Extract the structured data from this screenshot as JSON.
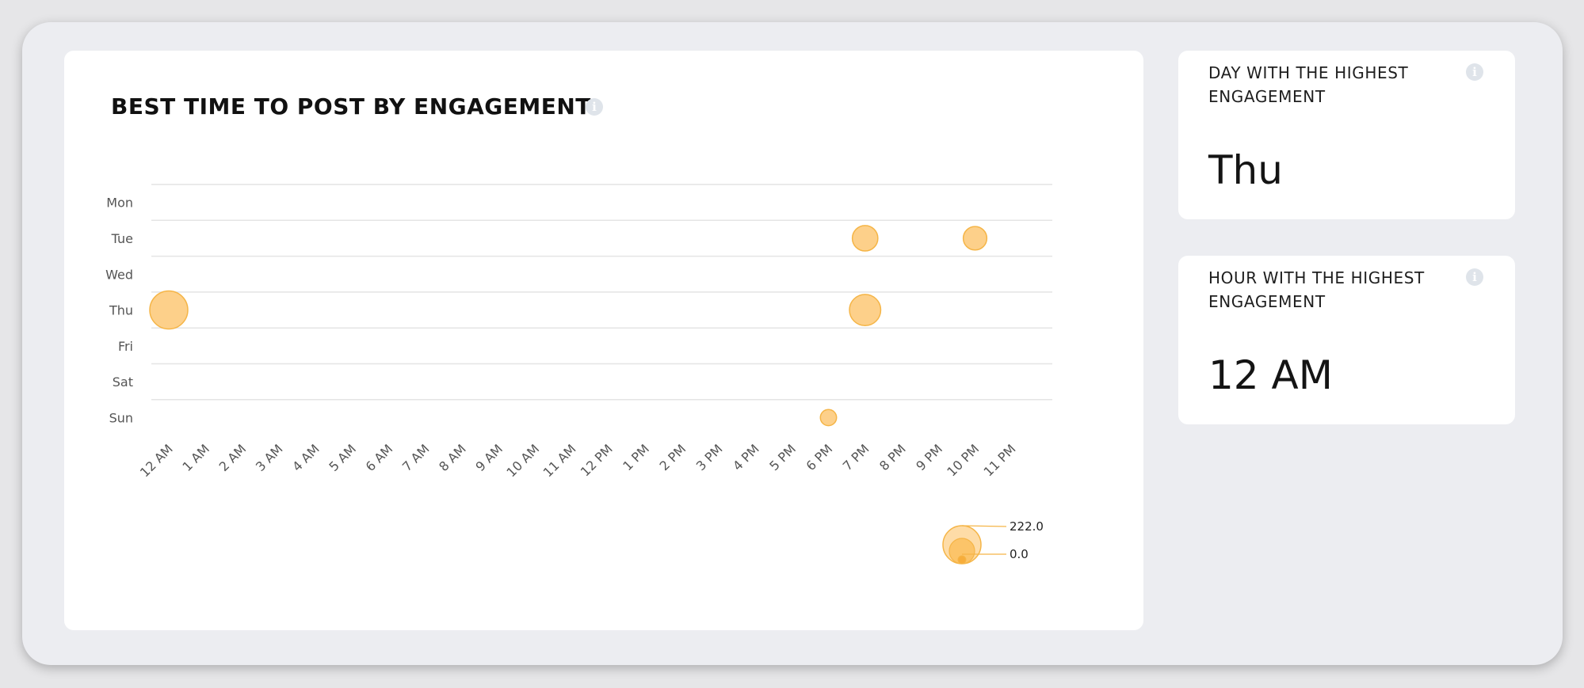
{
  "chart_title": "BEST TIME TO POST BY ENGAGEMENT",
  "day_card": {
    "label": "DAY WITH THE HIGHEST ENGAGEMENT",
    "value": "Thu"
  },
  "hour_card": {
    "label": "HOUR WITH THE HIGHEST ENGAGEMENT",
    "value": "12 AM"
  },
  "icons": {
    "info": "info-icon"
  },
  "colors": {
    "bubble_fill": "#fdd08a",
    "bubble_stroke": "#f5b547",
    "gridline": "#e4e4e4"
  },
  "chart_data": {
    "type": "scatter",
    "title": "BEST TIME TO POST BY ENGAGEMENT",
    "x_categories": [
      "12 AM",
      "1 AM",
      "2 AM",
      "3 AM",
      "4 AM",
      "5 AM",
      "6 AM",
      "7 AM",
      "8 AM",
      "9 AM",
      "10 AM",
      "11 AM",
      "12 PM",
      "1 PM",
      "2 PM",
      "3 PM",
      "4 PM",
      "5 PM",
      "6 PM",
      "7 PM",
      "8 PM",
      "9 PM",
      "10 PM",
      "11 PM"
    ],
    "y_categories": [
      "Mon",
      "Tue",
      "Wed",
      "Thu",
      "Fri",
      "Sat",
      "Sun"
    ],
    "points": [
      {
        "x": "12 AM",
        "y": "Thu",
        "value": 222
      },
      {
        "x": "7 PM",
        "y": "Thu",
        "value": 150
      },
      {
        "x": "7 PM",
        "y": "Tue",
        "value": 100
      },
      {
        "x": "10 PM",
        "y": "Tue",
        "value": 85
      },
      {
        "x": "6 PM",
        "y": "Sun",
        "value": 40
      }
    ],
    "size_legend": {
      "max_label": "222.0",
      "min_label": "0.0",
      "max": 222,
      "min": 0
    },
    "grid": true
  }
}
